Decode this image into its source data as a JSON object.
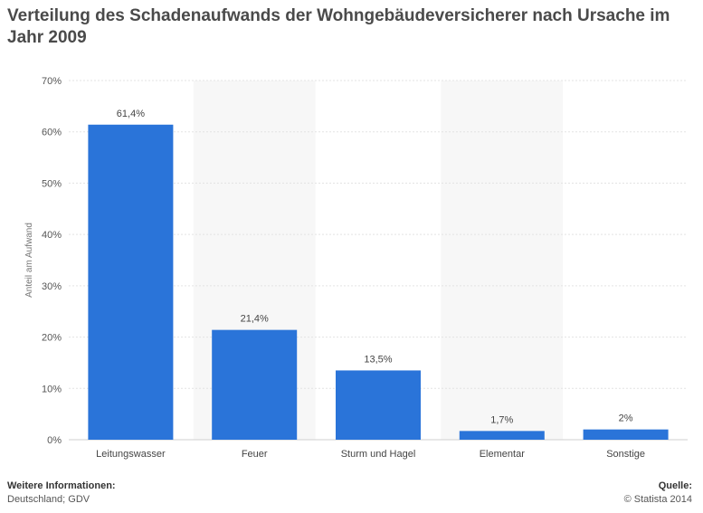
{
  "title": "Verteilung des Schadenaufwands der Wohngebäudeversicherer nach Ursache im Jahr 2009",
  "footer": {
    "info_heading": "Weitere Informationen:",
    "info_text": "Deutschland; GDV",
    "source_heading": "Quelle:",
    "source_text": "© Statista 2014"
  },
  "chart_data": {
    "type": "bar",
    "title": "Verteilung des Schadenaufwands der Wohngebäudeversicherer nach Ursache im Jahr 2009",
    "xlabel": "",
    "ylabel": "Anteil am Aufwand",
    "categories": [
      "Leitungswasser",
      "Feuer",
      "Sturm und Hagel",
      "Elementar",
      "Sonstige"
    ],
    "values": [
      61.4,
      21.4,
      13.5,
      1.7,
      2
    ],
    "value_labels": [
      "61,4%",
      "21,4%",
      "13,5%",
      "1,7%",
      "2%"
    ],
    "ylim": [
      0,
      70
    ],
    "yticks": [
      0,
      10,
      20,
      30,
      40,
      50,
      60,
      70
    ],
    "ytick_labels": [
      "0%",
      "10%",
      "20%",
      "30%",
      "40%",
      "50%",
      "60%",
      "70%"
    ],
    "bar_color": "#2a74d9",
    "grid": true,
    "legend": "none"
  }
}
